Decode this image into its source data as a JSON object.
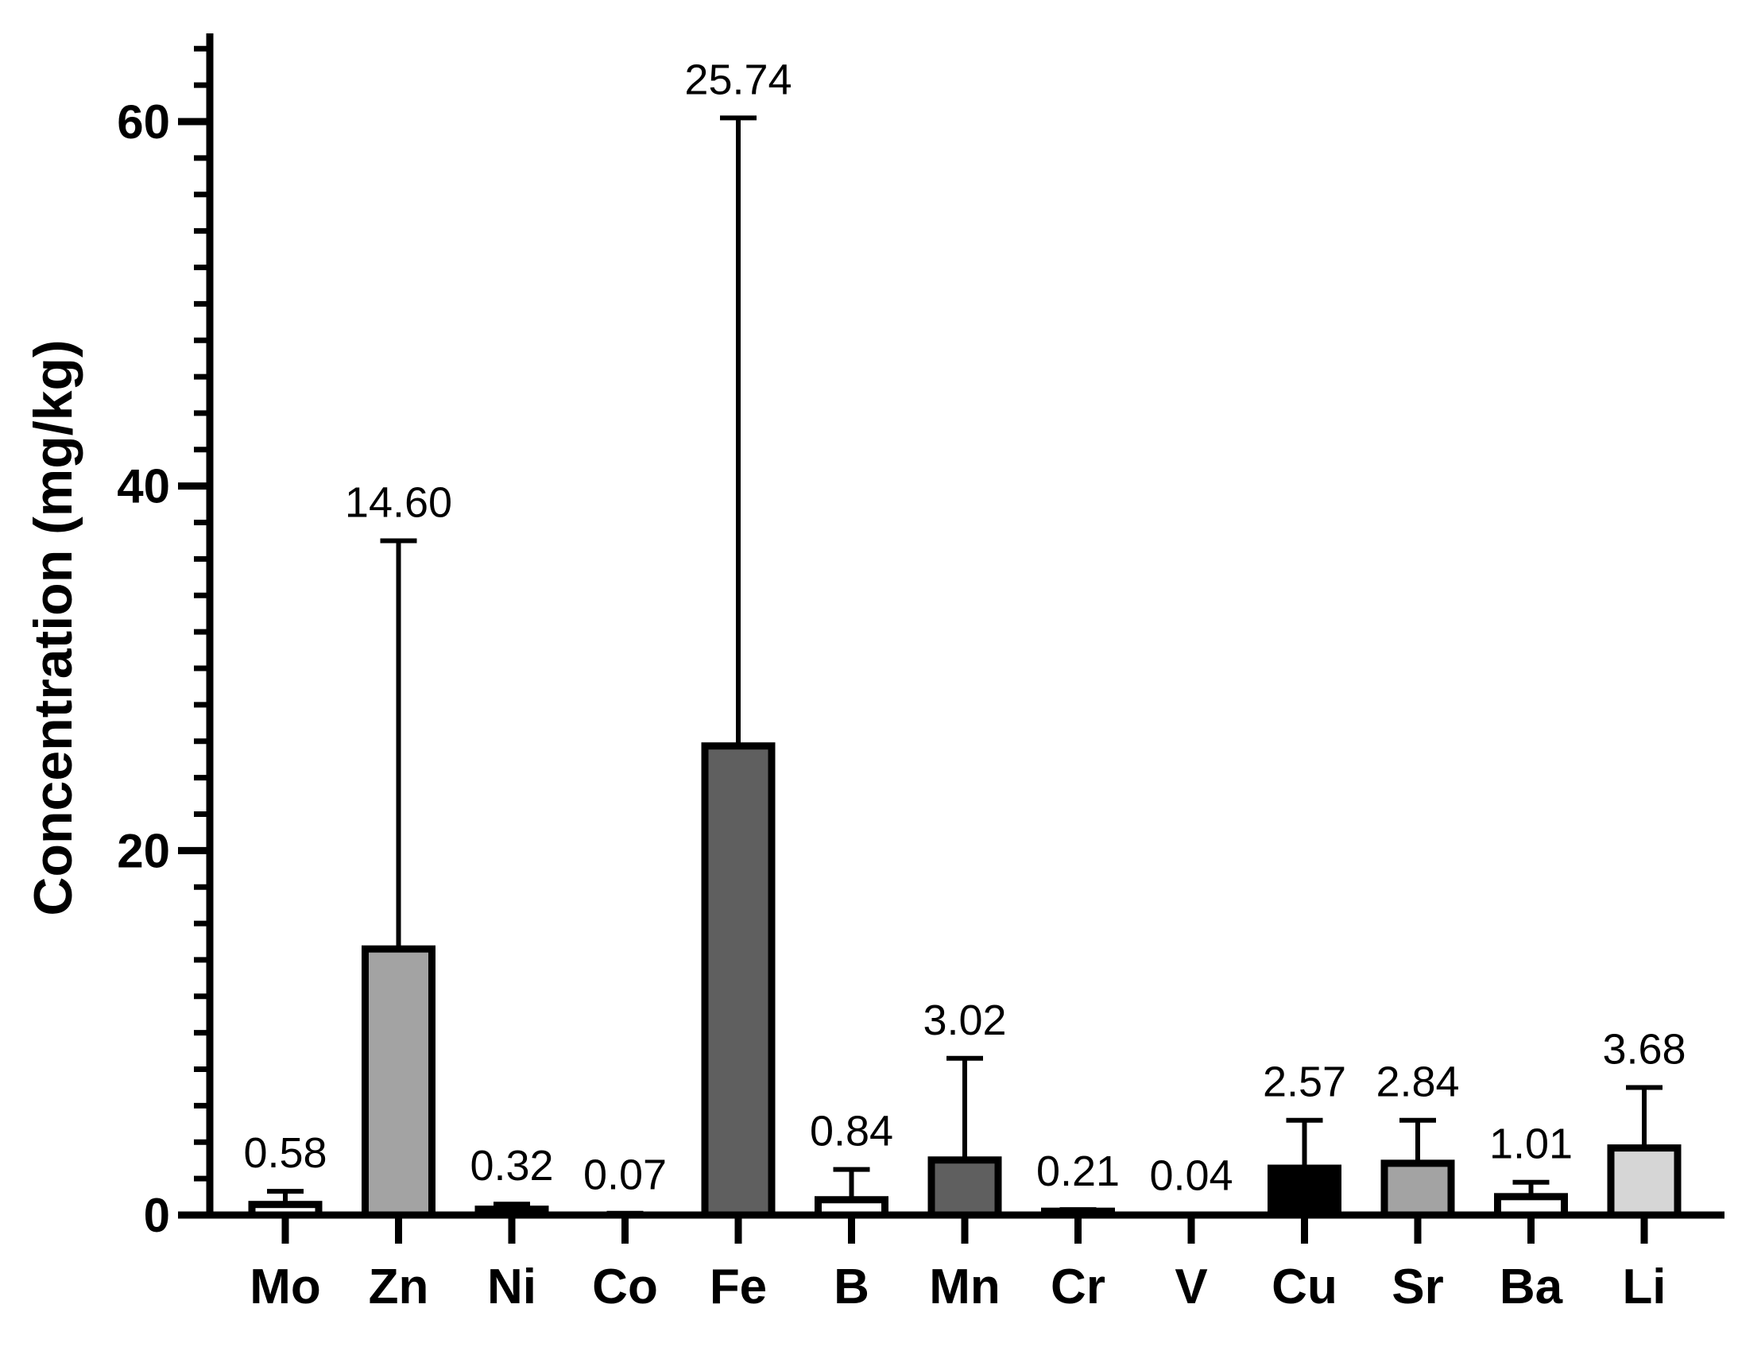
{
  "chart_data": {
    "type": "bar",
    "title": "",
    "xlabel": "",
    "ylabel": "Concentration (mg/kg)",
    "ylim": [
      0,
      65
    ],
    "yticks": [
      0,
      20,
      40,
      60
    ],
    "y_minor_tick_step": 2,
    "grid": false,
    "legend": "none",
    "categories": [
      "Mo",
      "Zn",
      "Ni",
      "Co",
      "Fe",
      "B",
      "Mn",
      "Cr",
      "V",
      "Cu",
      "Sr",
      "Ba",
      "Li"
    ],
    "values": [
      0.58,
      14.6,
      0.32,
      0.07,
      25.74,
      0.84,
      3.02,
      0.21,
      0.04,
      2.57,
      2.84,
      1.01,
      3.68
    ],
    "error_upper": [
      1.3,
      37.0,
      0.6,
      0.1,
      60.2,
      2.5,
      8.6,
      0.3,
      0.06,
      5.2,
      5.2,
      1.8,
      7.0
    ],
    "value_labels": [
      "0.58",
      "14.60",
      "0.32",
      "0.07",
      "25.74",
      "0.84",
      "3.02",
      "0.21",
      "0.04",
      "2.57",
      "2.84",
      "1.01",
      "3.68"
    ],
    "bar_colors": [
      "#ffffff",
      "#a3a3a3",
      "#ffffff",
      "#ffffff",
      "#5f5f5f",
      "#ffffff",
      "#5f5f5f",
      "#ffffff",
      "#ffffff",
      "#000000",
      "#a3a3a3",
      "#ffffff",
      "#d6d6d6"
    ]
  }
}
